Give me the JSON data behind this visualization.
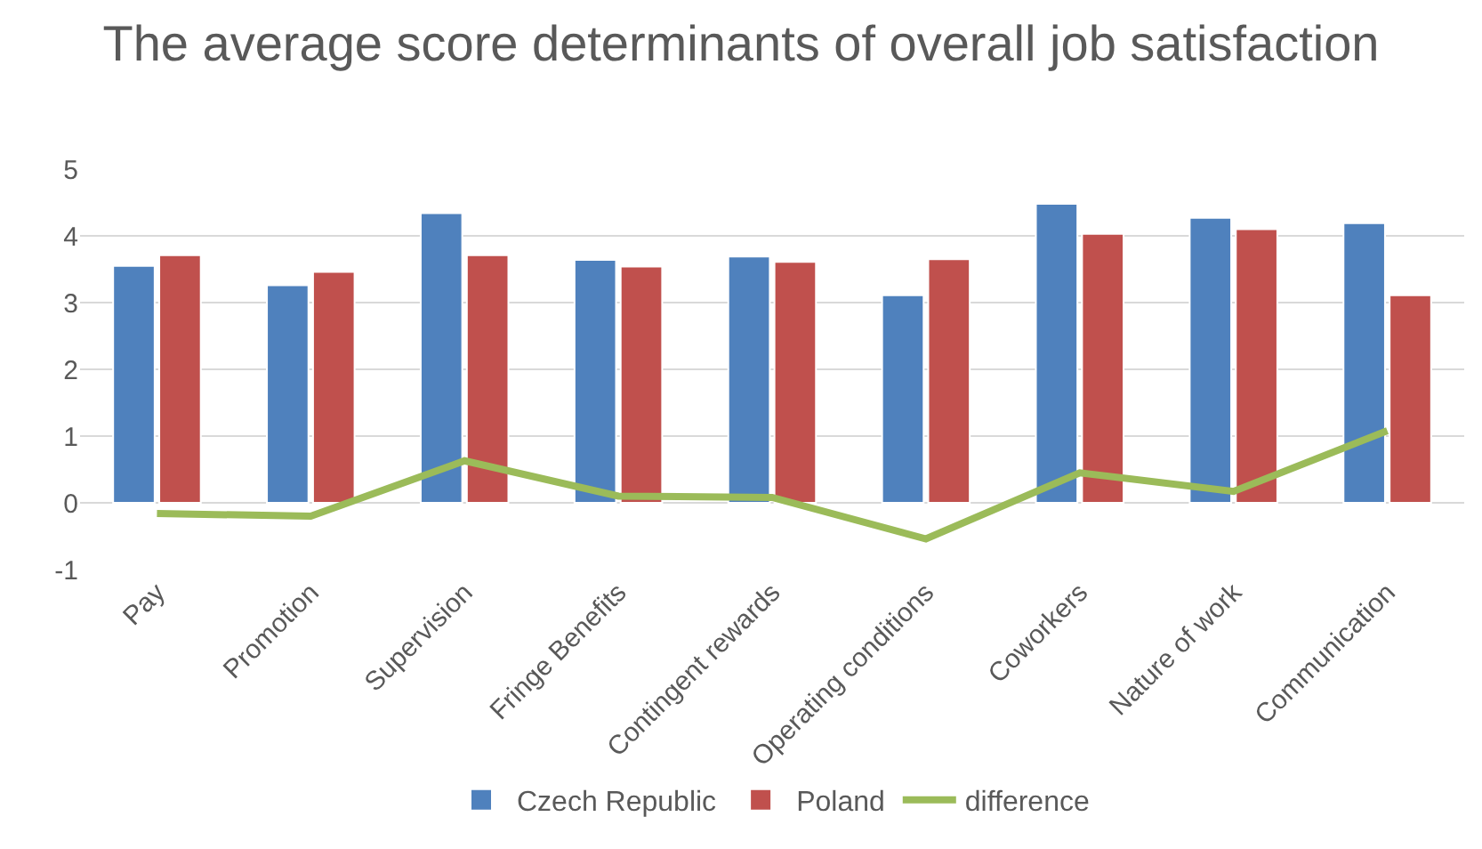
{
  "chart_data": {
    "type": "bar",
    "title": "The average score determinants of overall job satisfaction",
    "categories": [
      "Pay",
      "Promotion",
      "Supervision",
      "Fringe Benefits",
      "Contingent rewards",
      "Operating conditions",
      "Coworkers",
      "Nature of work",
      "Communication"
    ],
    "series": [
      {
        "name": "Czech Republic",
        "color": "#4f81bd",
        "values": [
          3.55,
          3.26,
          4.34,
          3.64,
          3.69,
          3.11,
          4.48,
          4.27,
          4.19
        ]
      },
      {
        "name": "Poland",
        "color": "#c0504d",
        "values": [
          3.71,
          3.46,
          3.71,
          3.54,
          3.61,
          3.65,
          4.03,
          4.1,
          3.11
        ]
      },
      {
        "name": "difference",
        "type": "line",
        "color": "#9bbb59",
        "values": [
          -0.16,
          -0.2,
          0.63,
          0.1,
          0.08,
          -0.54,
          0.45,
          0.17,
          1.08
        ]
      }
    ],
    "ylim": [
      -1,
      5
    ],
    "yticks": [
      -1,
      0,
      1,
      2,
      3,
      4,
      5
    ],
    "grid": "y",
    "legend": "bottom"
  }
}
